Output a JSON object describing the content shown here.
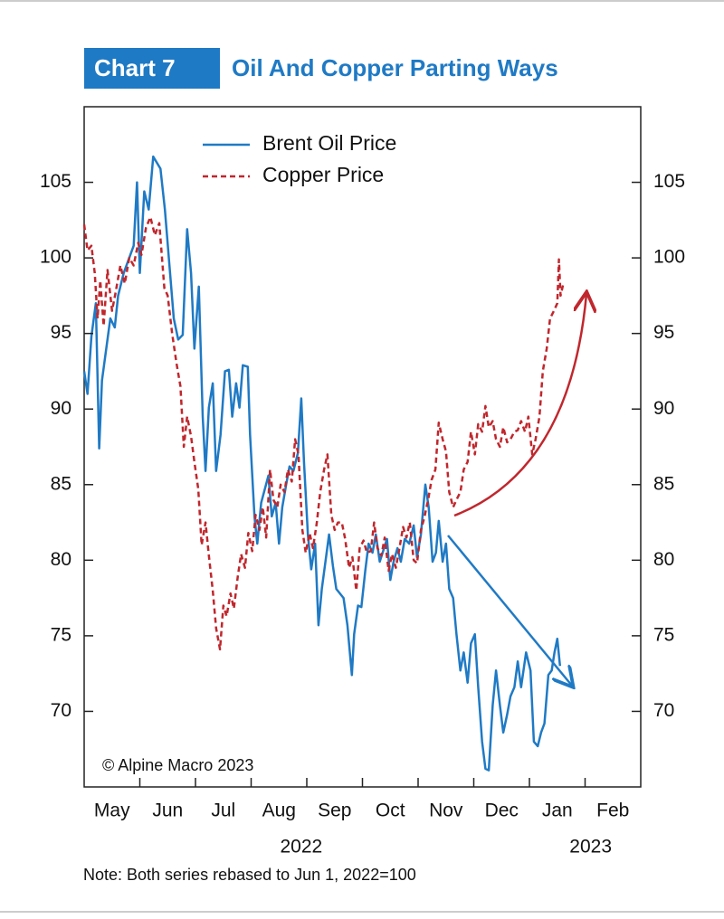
{
  "chart_data": {
    "type": "line",
    "badge": "Chart 7",
    "title": "Oil And Copper Parting Ways",
    "annotation": "© Alpine Macro 2023",
    "note": "Note: Both series rebased to Jun 1, 2022=100",
    "categories": [
      "May",
      "Jun",
      "Jul",
      "Aug",
      "Sep",
      "Oct",
      "Nov",
      "Dec",
      "Jan",
      "Feb"
    ],
    "years": [
      "2022",
      "2023"
    ],
    "xlim": [
      0,
      10
    ],
    "ylim": [
      65,
      110
    ],
    "yticks": [
      70,
      75,
      80,
      85,
      90,
      95,
      100,
      105
    ],
    "legend": "top-left",
    "series": [
      {
        "name": "Brent Oil Price",
        "color": "#1f7ac5",
        "style": "solid",
        "x": [
          0.0,
          0.06,
          0.13,
          0.21,
          0.27,
          0.32,
          0.47,
          0.55,
          0.61,
          0.71,
          0.89,
          0.95,
          1.0,
          1.08,
          1.16,
          1.24,
          1.37,
          1.45,
          1.53,
          1.61,
          1.69,
          1.77,
          1.85,
          1.92,
          1.98,
          2.06,
          2.13,
          2.18,
          2.24,
          2.31,
          2.37,
          2.45,
          2.53,
          2.6,
          2.66,
          2.73,
          2.79,
          2.85,
          2.94,
          2.98,
          3.06,
          3.11,
          3.18,
          3.31,
          3.37,
          3.44,
          3.5,
          3.56,
          3.63,
          3.69,
          3.76,
          3.84,
          3.9,
          3.95,
          4.02,
          4.08,
          4.15,
          4.21,
          4.27,
          4.4,
          4.47,
          4.53,
          4.66,
          4.73,
          4.81,
          4.85,
          4.92,
          4.98,
          5.05,
          5.11,
          5.18,
          5.24,
          5.31,
          5.44,
          5.5,
          5.56,
          5.63,
          5.69,
          5.76,
          5.84,
          5.92,
          5.98,
          6.05,
          6.13,
          6.19,
          6.26,
          6.32,
          6.37,
          6.44,
          6.5,
          6.56,
          6.63,
          6.69,
          6.76,
          6.82,
          6.89,
          6.95,
          7.02,
          7.08,
          7.15,
          7.21,
          7.27,
          7.34,
          7.4,
          7.47,
          7.53,
          7.6,
          7.66,
          7.73,
          7.79,
          7.85,
          7.94,
          8.02,
          8.08,
          8.15,
          8.21,
          8.27,
          8.34,
          8.4,
          8.45,
          8.5,
          8.55
        ],
        "values": [
          92.5,
          91,
          94.8,
          97,
          87.4,
          91.9,
          96,
          95.4,
          97.5,
          99,
          100.8,
          105,
          99,
          104.4,
          103.2,
          106.7,
          105.9,
          103.2,
          99.6,
          96,
          94.6,
          94.9,
          101.9,
          99,
          94,
          98.1,
          89.5,
          85.9,
          90.1,
          91.7,
          85.9,
          88.3,
          92.5,
          92.6,
          89.5,
          91.7,
          90.1,
          92.9,
          92.8,
          88.3,
          82.9,
          81.1,
          83.8,
          85.6,
          82.9,
          83.8,
          81.1,
          83.5,
          85,
          86.2,
          85.9,
          87.1,
          90.7,
          86.5,
          81.7,
          79.4,
          81.1,
          75.7,
          78.1,
          81.7,
          79.6,
          78.1,
          77.5,
          75.7,
          72.4,
          75.1,
          77,
          76.9,
          79.3,
          81.1,
          80.5,
          81.7,
          79.9,
          81.4,
          78.7,
          79.9,
          80.8,
          79.9,
          81.4,
          81.1,
          82.3,
          80.2,
          81.7,
          85,
          83.5,
          79.9,
          80.5,
          82.6,
          79.9,
          81.1,
          78.1,
          77.5,
          75.1,
          72.7,
          73.9,
          71.9,
          74.5,
          75.1,
          71.6,
          68,
          66.2,
          66.1,
          70.4,
          72.7,
          70.4,
          68.6,
          69.8,
          71,
          71.6,
          73.3,
          71.6,
          73.9,
          72.7,
          68,
          67.7,
          68.6,
          69.2,
          72.4,
          72.7,
          73.9,
          74.8,
          73
        ]
      },
      {
        "name": "Copper Price",
        "color": "#c0272d",
        "style": "dashed",
        "x": [
          0.0,
          0.06,
          0.13,
          0.19,
          0.24,
          0.29,
          0.35,
          0.42,
          0.5,
          0.56,
          0.65,
          0.73,
          0.81,
          0.89,
          0.97,
          1.03,
          1.11,
          1.19,
          1.27,
          1.35,
          1.44,
          1.5,
          1.58,
          1.66,
          1.73,
          1.79,
          1.85,
          1.92,
          1.98,
          2.05,
          2.11,
          2.18,
          2.24,
          2.31,
          2.37,
          2.44,
          2.5,
          2.56,
          2.63,
          2.69,
          2.76,
          2.82,
          2.89,
          2.95,
          3.02,
          3.08,
          3.15,
          3.21,
          3.27,
          3.34,
          3.4,
          3.47,
          3.53,
          3.6,
          3.66,
          3.73,
          3.79,
          3.85,
          3.92,
          3.98,
          4.05,
          4.11,
          4.18,
          4.24,
          4.31,
          4.37,
          4.44,
          4.5,
          4.56,
          4.63,
          4.69,
          4.76,
          4.82,
          4.89,
          4.95,
          5.02,
          5.08,
          5.15,
          5.21,
          5.27,
          5.34,
          5.4,
          5.47,
          5.53,
          5.6,
          5.66,
          5.73,
          5.79,
          5.85,
          5.92,
          5.98,
          6.05,
          6.11,
          6.18,
          6.24,
          6.31,
          6.37,
          6.44,
          6.5,
          6.56,
          6.63,
          6.69,
          6.76,
          6.82,
          6.89,
          6.95,
          7.02,
          7.08,
          7.15,
          7.21,
          7.27,
          7.34,
          7.4,
          7.47,
          7.53,
          7.6,
          7.66,
          7.73,
          7.79,
          7.85,
          7.92,
          7.98,
          8.05,
          8.11,
          8.18,
          8.24,
          8.31,
          8.37,
          8.44,
          8.5,
          8.53,
          8.56,
          8.61
        ],
        "values": [
          102.2,
          100.5,
          100.8,
          99,
          96,
          98.5,
          95.5,
          99.2,
          96.5,
          97.6,
          99.5,
          98.3,
          100,
          99.5,
          101,
          100.2,
          102,
          102.7,
          101.5,
          102.3,
          98,
          97.5,
          95,
          93,
          91.5,
          87.5,
          89.5,
          88.2,
          86.5,
          84.7,
          81,
          82.5,
          80.3,
          78,
          75.5,
          74.1,
          77,
          76.3,
          77.8,
          76.8,
          78.9,
          80.4,
          79.5,
          81.8,
          80.6,
          83,
          82,
          83.5,
          81.5,
          86,
          84,
          83.5,
          85,
          84.5,
          86,
          85.2,
          88,
          87,
          82,
          80.5,
          81.8,
          80.8,
          82.5,
          84.5,
          86,
          87,
          83,
          82,
          82.5,
          82.5,
          81.4,
          79.5,
          80.2,
          78,
          80.8,
          81.3,
          80.5,
          80.6,
          82.5,
          80.8,
          80.3,
          81.5,
          79.3,
          80.4,
          79.5,
          80.7,
          82.2,
          81.5,
          82.5,
          80,
          79.8,
          82,
          82.8,
          84,
          85.3,
          86,
          89.1,
          88,
          87.2,
          84.5,
          83.5,
          84,
          84.5,
          86,
          86.5,
          88.5,
          87,
          89,
          88.5,
          90.2,
          88.8,
          89.2,
          88,
          87.5,
          88.8,
          87.8,
          88,
          88.5,
          88.6,
          89.2,
          88.5,
          89.5,
          87,
          88,
          89.5,
          92.5,
          94,
          96,
          96.5,
          97,
          99.9,
          97.5,
          98.3
        ]
      }
    ]
  }
}
